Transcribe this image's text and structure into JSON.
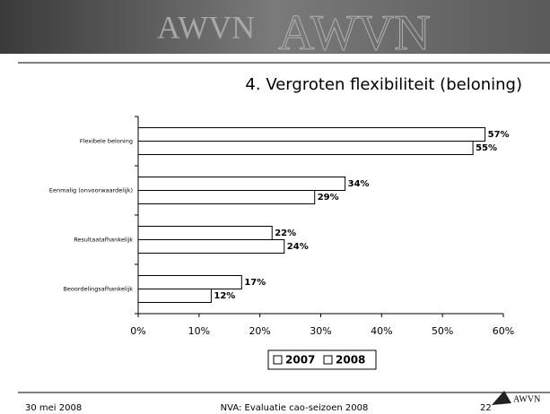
{
  "header": {
    "brand": "AWVN"
  },
  "chart_data": {
    "type": "bar",
    "orientation": "horizontal",
    "title": "4. Vergroten flexibiliteit (beloning)",
    "categories": [
      "Flexibele beloning",
      "Eenmalig (onvoorwaardelijk)",
      "Resultaatafhankelijk",
      "Beoordelingsafhankelijk"
    ],
    "series": [
      {
        "name": "2007",
        "color": "#ffffff",
        "values": [
          57,
          34,
          22,
          17
        ],
        "value_labels": [
          "57%",
          "34%",
          "22%",
          "17%"
        ]
      },
      {
        "name": "2008",
        "color": "#ffffff",
        "values": [
          55,
          29,
          24,
          12
        ],
        "value_labels": [
          "55%",
          "29%",
          "24%",
          "12%"
        ]
      }
    ],
    "xlim": [
      0,
      60
    ],
    "xticks": [
      {
        "value": 0,
        "label": "0%"
      },
      {
        "value": 10,
        "label": "10%"
      },
      {
        "value": 20,
        "label": "20%"
      },
      {
        "value": 30,
        "label": "30%"
      },
      {
        "value": 40,
        "label": "40%"
      },
      {
        "value": 50,
        "label": "50%"
      },
      {
        "value": 60,
        "label": "60%"
      }
    ],
    "grid": false,
    "legend": "bottom"
  },
  "footer": {
    "date": "30 mei 2008",
    "center": "NVA: Evaluatie cao-seizoen 2008",
    "page": "22",
    "logo": "AWVN"
  }
}
